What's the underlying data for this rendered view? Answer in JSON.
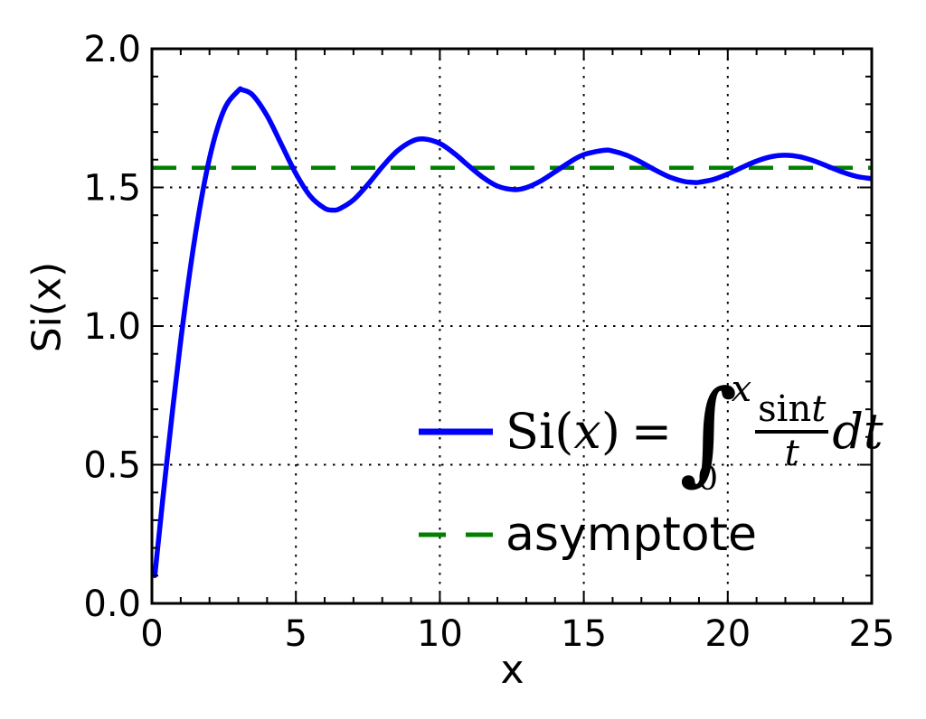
{
  "figure": {
    "background": "#ffffff",
    "xlabel": "x",
    "ylabel": "Si(x)",
    "x_tick_labels": [
      "0",
      "5",
      "10",
      "15",
      "20",
      "25"
    ],
    "y_tick_labels": [
      "0.0",
      "0.5",
      "1.0",
      "1.5",
      "2.0"
    ]
  },
  "legend": {
    "position": "lower right",
    "formula": {
      "si": "Si(",
      "var_x": "x",
      "close": ")",
      "equals": "=",
      "integral": "∫",
      "upper_limit": "x",
      "lower_limit": "0",
      "sin": "sin",
      "num_t": "t",
      "den_t": "t",
      "dt": "dt"
    },
    "asymptote_label": "asymptote"
  },
  "chart_data": {
    "type": "line",
    "title": "",
    "xlabel": "x",
    "ylabel": "Si(x)",
    "xlim": [
      0,
      25
    ],
    "ylim": [
      0.0,
      2.0
    ],
    "xticks": [
      0,
      5,
      10,
      15,
      20,
      25
    ],
    "yticks": [
      0.0,
      0.5,
      1.0,
      1.5,
      2.0
    ],
    "x_minor_step": 1,
    "y_minor_step": 0.1,
    "grid": "dotted lines at major ticks",
    "legend_position": "lower right",
    "series": [
      {
        "name": "Si(x) = integral from 0 to x of (sin t / t) dt",
        "type": "curve",
        "color": "#0000ff",
        "style": "solid",
        "line_width": 5.5,
        "x": [
          0.1,
          0.5,
          1,
          1.5,
          2,
          2.5,
          3,
          3.1416,
          3.5,
          4,
          4.5,
          5,
          5.5,
          6,
          6.2832,
          6.5,
          7,
          7.5,
          8,
          8.5,
          9,
          9.4248,
          10,
          10.5,
          11,
          11.5,
          12,
          12.5663,
          13,
          13.5,
          14,
          14.5,
          15,
          15.708,
          16,
          16.5,
          17,
          17.5,
          18,
          18.5,
          18.8496,
          19,
          19.5,
          20,
          20.5,
          21,
          21.5,
          21.9911,
          22.5,
          23,
          23.5,
          24,
          24.5,
          25
        ],
        "y": [
          0.1,
          0.4931,
          0.9461,
          1.3247,
          1.6054,
          1.7785,
          1.8487,
          1.8519,
          1.8331,
          1.7582,
          1.6541,
          1.5499,
          1.4687,
          1.4247,
          1.4182,
          1.4222,
          1.4552,
          1.5107,
          1.5743,
          1.6296,
          1.665,
          1.6748,
          1.6583,
          1.6229,
          1.5783,
          1.5358,
          1.505,
          1.4922,
          1.4994,
          1.5229,
          1.5562,
          1.5907,
          1.6182,
          1.634,
          1.6313,
          1.6156,
          1.5901,
          1.5615,
          1.5366,
          1.5213,
          1.518,
          1.5186,
          1.5286,
          1.5482,
          1.5723,
          1.5949,
          1.6106,
          1.6161,
          1.6104,
          1.5955,
          1.5752,
          1.5547,
          1.539,
          1.5315
        ]
      },
      {
        "name": "asymptote",
        "type": "hline",
        "color": "#008000",
        "style": "dashed",
        "line_width": 4.5,
        "y_value": 1.5708
      }
    ]
  },
  "colors": {
    "curve": "#0000ff",
    "asymptote": "#008000",
    "axes": "#000000",
    "grid": "#000000"
  }
}
